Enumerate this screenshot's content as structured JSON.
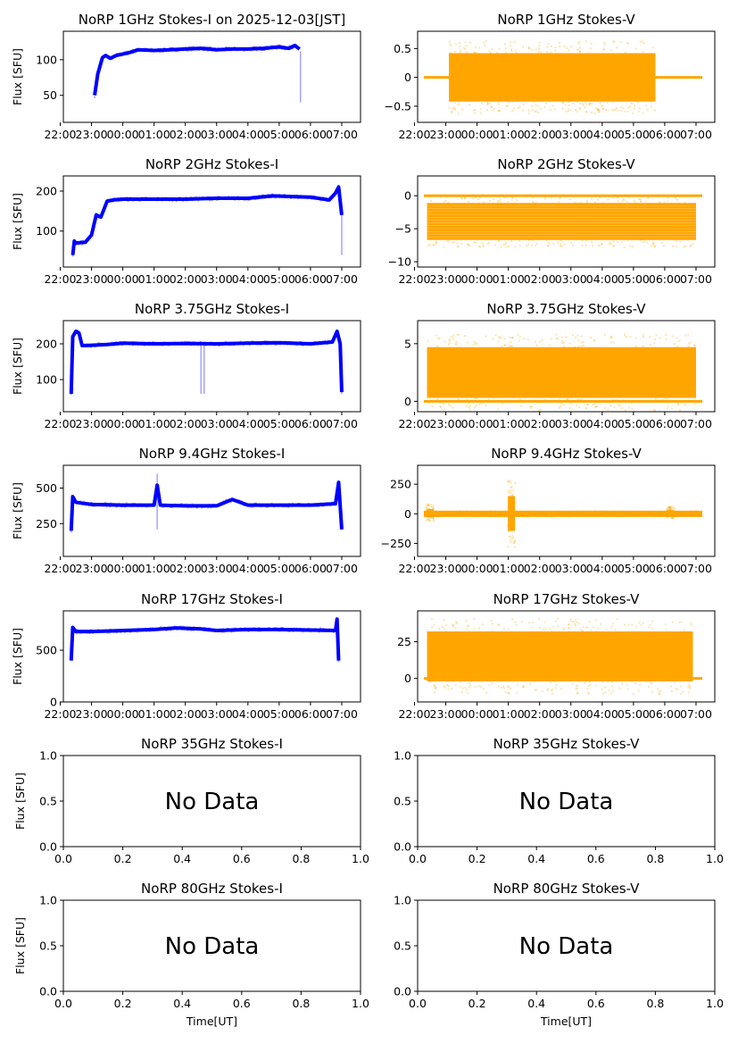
{
  "figure": {
    "title_date": "2025-12-03[JST]"
  },
  "colors": {
    "stokes_i": "#0000ff",
    "stokes_v": "#ffa500",
    "axes": "#000000"
  },
  "chart_data": [
    {
      "type": "scatter",
      "title": "NoRP 1GHz Stokes-I on 2025-12-03[JST]",
      "xlabel": "",
      "ylabel": "Flux [SFU]",
      "xticks": [
        "22:00",
        "23:00",
        "00:00",
        "01:00",
        "02:00",
        "03:00",
        "04:00",
        "05:00",
        "06:00",
        "07:00"
      ],
      "xlim_hours": [
        -1.9,
        7.6
      ],
      "ylim": [
        12,
        140
      ],
      "yticks": [
        50,
        100
      ],
      "color": "stokes_i",
      "series": [
        {
          "name": "Stokes-I",
          "x": [
            -0.9,
            -0.8,
            -0.65,
            -0.55,
            -0.4,
            -0.2,
            0.2,
            0.5,
            1.0,
            1.5,
            2.0,
            2.5,
            3.0,
            3.5,
            4.0,
            4.5,
            5.0,
            5.3,
            5.5,
            5.65
          ],
          "y": [
            50,
            80,
            103,
            106,
            102,
            106,
            110,
            114,
            113,
            114,
            115,
            116,
            114,
            115,
            115,
            116,
            118,
            116,
            120,
            115
          ]
        }
      ],
      "outliers": [
        {
          "x": 5.68,
          "range": [
            40,
            112
          ]
        }
      ]
    },
    {
      "type": "scatter",
      "title": "NoRP 1GHz Stokes-V",
      "xlabel": "",
      "ylabel": "",
      "xticks": [
        "22:00",
        "23:00",
        "00:00",
        "01:00",
        "02:00",
        "03:00",
        "04:00",
        "05:00",
        "06:00",
        "07:00"
      ],
      "xlim_hours": [
        -1.9,
        7.6
      ],
      "ylim": [
        -0.78,
        0.8
      ],
      "yticks": [
        -0.5,
        0.0,
        0.5
      ],
      "color": "stokes_v",
      "series": [
        {
          "name": "Stokes-V",
          "band": {
            "x_start": -0.9,
            "x_end": 5.7,
            "y_min": -0.42,
            "y_max": 0.42
          },
          "baseline": {
            "x_start": -1.7,
            "x_end": 7.2,
            "y": 0.0
          }
        }
      ]
    },
    {
      "type": "scatter",
      "title": "NoRP 2GHz Stokes-I",
      "xlabel": "",
      "ylabel": "Flux [SFU]",
      "xticks": [
        "22:00",
        "23:00",
        "00:00",
        "01:00",
        "02:00",
        "03:00",
        "04:00",
        "05:00",
        "06:00",
        "07:00"
      ],
      "xlim_hours": [
        -1.9,
        7.6
      ],
      "ylim": [
        10,
        238
      ],
      "yticks": [
        100,
        200
      ],
      "color": "stokes_i",
      "series": [
        {
          "name": "Stokes-I",
          "x": [
            -1.6,
            -1.55,
            -1.5,
            -1.2,
            -1.0,
            -0.85,
            -0.7,
            -0.5,
            -0.3,
            0.0,
            1.0,
            2.0,
            3.0,
            4.0,
            4.8,
            5.5,
            6.0,
            6.6,
            6.8,
            6.9,
            7.0
          ],
          "y": [
            40,
            75,
            70,
            72,
            90,
            140,
            135,
            175,
            178,
            180,
            180,
            180,
            182,
            182,
            188,
            186,
            185,
            178,
            195,
            210,
            140
          ]
        }
      ],
      "outliers": [
        {
          "x": 7.0,
          "range": [
            40,
            140
          ]
        }
      ]
    },
    {
      "type": "scatter",
      "title": "NoRP 2GHz Stokes-V",
      "xlabel": "",
      "ylabel": "",
      "xticks": [
        "22:00",
        "23:00",
        "00:00",
        "01:00",
        "02:00",
        "03:00",
        "04:00",
        "05:00",
        "06:00",
        "07:00"
      ],
      "xlim_hours": [
        -1.9,
        7.6
      ],
      "ylim": [
        -10.8,
        3
      ],
      "yticks": [
        -10,
        -5,
        0
      ],
      "color": "stokes_v",
      "series": [
        {
          "name": "Stokes-V",
          "band": {
            "x_start": -1.6,
            "x_end": 7.0,
            "y_min": -6.5,
            "y_max": -1.3
          },
          "baseline": {
            "x_start": -1.7,
            "x_end": 7.2,
            "y": 0.0
          }
        }
      ]
    },
    {
      "type": "scatter",
      "title": "NoRP 3.75GHz Stokes-I",
      "xlabel": "",
      "ylabel": "Flux [SFU]",
      "xticks": [
        "22:00",
        "23:00",
        "00:00",
        "01:00",
        "02:00",
        "03:00",
        "04:00",
        "05:00",
        "06:00",
        "07:00"
      ],
      "xlim_hours": [
        -1.9,
        7.6
      ],
      "ylim": [
        10,
        265
      ],
      "yticks": [
        100,
        200
      ],
      "color": "stokes_i",
      "series": [
        {
          "name": "Stokes-I",
          "x": [
            -1.65,
            -1.6,
            -1.5,
            -1.4,
            -1.3,
            -1.0,
            -0.5,
            0.0,
            1.0,
            2.0,
            3.0,
            4.0,
            5.0,
            6.0,
            6.7,
            6.85,
            6.95,
            7.0
          ],
          "y": [
            60,
            220,
            235,
            230,
            195,
            196,
            198,
            202,
            200,
            201,
            200,
            202,
            203,
            200,
            205,
            235,
            200,
            65
          ]
        }
      ],
      "outliers": [
        {
          "x": 2.5,
          "range": [
            60,
            200
          ]
        },
        {
          "x": 2.6,
          "range": [
            60,
            200
          ]
        }
      ]
    },
    {
      "type": "scatter",
      "title": "NoRP 3.75GHz Stokes-V",
      "xlabel": "",
      "ylabel": "",
      "xticks": [
        "22:00",
        "23:00",
        "00:00",
        "01:00",
        "02:00",
        "03:00",
        "04:00",
        "05:00",
        "06:00",
        "07:00"
      ],
      "xlim_hours": [
        -1.9,
        7.6
      ],
      "ylim": [
        -0.9,
        7
      ],
      "yticks": [
        0,
        5
      ],
      "color": "stokes_v",
      "series": [
        {
          "name": "Stokes-V",
          "band": {
            "x_start": -1.6,
            "x_end": 7.0,
            "y_min": 0.3,
            "y_max": 4.7
          },
          "baseline": {
            "x_start": -1.7,
            "x_end": 7.2,
            "y": 0.0
          }
        }
      ]
    },
    {
      "type": "scatter",
      "title": "NoRP 9.4GHz Stokes-I",
      "xlabel": "",
      "ylabel": "Flux [SFU]",
      "xticks": [
        "22:00",
        "23:00",
        "00:00",
        "01:00",
        "02:00",
        "03:00",
        "04:00",
        "05:00",
        "06:00",
        "07:00"
      ],
      "xlim_hours": [
        -1.9,
        7.6
      ],
      "ylim": [
        20,
        660
      ],
      "yticks": [
        250,
        500
      ],
      "color": "stokes_i",
      "series": [
        {
          "name": "Stokes-I",
          "x": [
            -1.65,
            -1.6,
            -1.5,
            -1.0,
            0.0,
            1.0,
            1.1,
            1.2,
            1.5,
            2.0,
            3.0,
            3.5,
            4.0,
            5.0,
            6.0,
            6.8,
            6.9,
            7.0
          ],
          "y": [
            200,
            440,
            400,
            385,
            380,
            380,
            520,
            380,
            378,
            375,
            375,
            420,
            380,
            380,
            380,
            390,
            540,
            210
          ]
        }
      ],
      "outliers": [
        {
          "x": 1.1,
          "range": [
            210,
            600
          ]
        }
      ]
    },
    {
      "type": "scatter",
      "title": "NoRP 9.4GHz Stokes-V",
      "xlabel": "",
      "ylabel": "",
      "xticks": [
        "22:00",
        "23:00",
        "00:00",
        "01:00",
        "02:00",
        "03:00",
        "04:00",
        "05:00",
        "06:00",
        "07:00"
      ],
      "xlim_hours": [
        -1.9,
        7.6
      ],
      "ylim": [
        -360,
        410
      ],
      "yticks": [
        -250,
        0,
        250
      ],
      "color": "stokes_v",
      "series": [
        {
          "name": "Stokes-V",
          "band": {
            "x_start": -1.7,
            "x_end": 7.2,
            "y_min": -15,
            "y_max": 15
          },
          "bursts": [
            {
              "x": 1.1,
              "range": [
                -290,
                300
              ]
            },
            {
              "x": -1.5,
              "range": [
                -60,
                80
              ]
            },
            {
              "x": 6.2,
              "range": [
                -40,
                60
              ]
            }
          ]
        }
      ]
    },
    {
      "type": "scatter",
      "title": "NoRP 17GHz Stokes-I",
      "xlabel": "",
      "ylabel": "Flux [SFU]",
      "xticks": [
        "22:00",
        "23:00",
        "00:00",
        "01:00",
        "02:00",
        "03:00",
        "04:00",
        "05:00",
        "06:00",
        "07:00"
      ],
      "xlim_hours": [
        -1.9,
        7.6
      ],
      "ylim": [
        0,
        880
      ],
      "yticks": [
        0,
        500
      ],
      "color": "stokes_i",
      "series": [
        {
          "name": "Stokes-I",
          "x": [
            -1.65,
            -1.6,
            -1.5,
            -1.0,
            0.0,
            1.0,
            1.7,
            2.5,
            3.0,
            4.0,
            5.0,
            6.0,
            6.8,
            6.85,
            6.9
          ],
          "y": [
            400,
            720,
            680,
            680,
            690,
            700,
            715,
            705,
            690,
            700,
            700,
            695,
            690,
            800,
            400
          ]
        }
      ]
    },
    {
      "type": "scatter",
      "title": "NoRP 17GHz Stokes-V",
      "xlabel": "",
      "ylabel": "",
      "xticks": [
        "22:00",
        "23:00",
        "00:00",
        "01:00",
        "02:00",
        "03:00",
        "04:00",
        "05:00",
        "06:00",
        "07:00"
      ],
      "xlim_hours": [
        -1.9,
        7.6
      ],
      "ylim": [
        -16,
        46
      ],
      "yticks": [
        0,
        25
      ],
      "color": "stokes_v",
      "series": [
        {
          "name": "Stokes-V",
          "band": {
            "x_start": -1.6,
            "x_end": 6.9,
            "y_min": -2,
            "y_max": 32
          },
          "baseline": {
            "x_start": -1.7,
            "x_end": 7.2,
            "y": 0.0
          }
        }
      ]
    },
    {
      "type": "scatter",
      "title": "NoRP 35GHz Stokes-I",
      "xlabel": "",
      "ylabel": "Flux [SFU]",
      "xticks": [
        "0.0",
        "0.2",
        "0.4",
        "0.6",
        "0.8",
        "1.0"
      ],
      "ylim": [
        0,
        1
      ],
      "yticks": [
        "0.0",
        "0.5",
        "1.0"
      ],
      "annotation": "No Data"
    },
    {
      "type": "scatter",
      "title": "NoRP 35GHz Stokes-V",
      "xlabel": "",
      "ylabel": "",
      "xticks": [
        "0.0",
        "0.2",
        "0.4",
        "0.6",
        "0.8",
        "1.0"
      ],
      "ylim": [
        0,
        1
      ],
      "yticks": [
        "0.0",
        "0.5",
        "1.0"
      ],
      "annotation": "No Data"
    },
    {
      "type": "scatter",
      "title": "NoRP 80GHz Stokes-I",
      "xlabel": "Time[UT]",
      "ylabel": "Flux [SFU]",
      "xticks": [
        "0.0",
        "0.2",
        "0.4",
        "0.6",
        "0.8",
        "1.0"
      ],
      "ylim": [
        0,
        1
      ],
      "yticks": [
        "0.0",
        "0.5",
        "1.0"
      ],
      "annotation": "No Data"
    },
    {
      "type": "scatter",
      "title": "NoRP 80GHz Stokes-V",
      "xlabel": "Time[UT]",
      "ylabel": "",
      "xticks": [
        "0.0",
        "0.2",
        "0.4",
        "0.6",
        "0.8",
        "1.0"
      ],
      "ylim": [
        0,
        1
      ],
      "yticks": [
        "0.0",
        "0.5",
        "1.0"
      ],
      "annotation": "No Data"
    }
  ]
}
